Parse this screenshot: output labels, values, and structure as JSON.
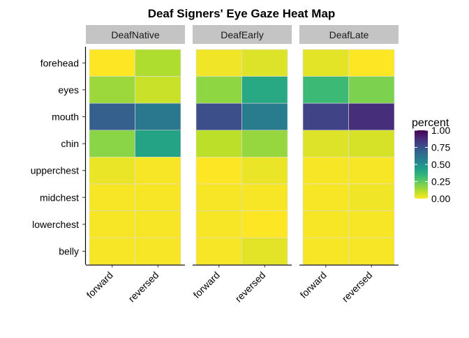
{
  "chart_data": {
    "type": "heatmap",
    "title": "Deaf Signers' Eye Gaze Heat Map",
    "xlabel": "",
    "ylabel": "",
    "facets": [
      "DeafNative",
      "DeafEarly",
      "DeafLate"
    ],
    "x_categories": [
      "forward",
      "reversed"
    ],
    "y_categories": [
      "forehead",
      "eyes",
      "mouth",
      "chin",
      "upperchest",
      "midchest",
      "lowerchest",
      "belly"
    ],
    "values": {
      "DeafNative": {
        "forward": [
          0.0,
          0.15,
          0.7,
          0.18,
          0.03,
          0.01,
          0.01,
          0.01
        ],
        "reversed": [
          0.12,
          0.08,
          0.6,
          0.42,
          0.01,
          0.01,
          0.01,
          0.01
        ]
      },
      "DeafEarly": {
        "forward": [
          0.02,
          0.17,
          0.76,
          0.1,
          0.0,
          0.01,
          0.01,
          0.01
        ],
        "reversed": [
          0.05,
          0.4,
          0.58,
          0.16,
          0.03,
          0.01,
          0.0,
          0.04
        ]
      },
      "DeafLate": {
        "forward": [
          0.04,
          0.32,
          0.8,
          0.05,
          0.01,
          0.01,
          0.01,
          0.01
        ],
        "reversed": [
          0.0,
          0.2,
          0.87,
          0.06,
          0.01,
          0.02,
          0.01,
          0.01
        ]
      }
    },
    "legend": {
      "title": "percent",
      "ticks": [
        "1.00",
        "0.75",
        "0.50",
        "0.25",
        "0.00"
      ],
      "tick_values": [
        1.0,
        0.75,
        0.5,
        0.25,
        0.0
      ],
      "range": [
        0,
        1
      ],
      "placement": "right"
    },
    "colorscale": "viridis",
    "colors": {
      "strip_bg": "#c4c4c4",
      "cell_border": "#dedede"
    },
    "grid": false
  }
}
